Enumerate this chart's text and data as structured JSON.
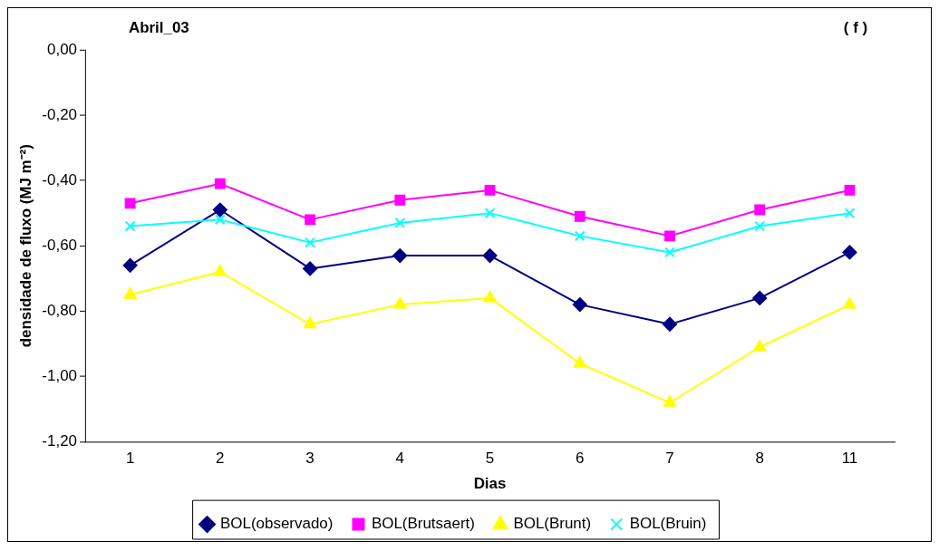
{
  "chart_data": {
    "type": "line",
    "title": "Abril_03",
    "annotations": [
      "( f )"
    ],
    "xlabel": "Dias",
    "ylabel": "densidade de fluxo (MJ m⁻²)",
    "categories": [
      "1",
      "2",
      "3",
      "4",
      "5",
      "6",
      "7",
      "8",
      "11"
    ],
    "ylim": [
      -1.2,
      0
    ],
    "yticks": [
      {
        "value": 0,
        "label": "0,00"
      },
      {
        "value": -0.2,
        "label": "-0,20"
      },
      {
        "value": -0.4,
        "label": "-0,40"
      },
      {
        "value": -0.6,
        "label": "-0,60"
      },
      {
        "value": -0.8,
        "label": "-0,80"
      },
      {
        "value": -1,
        "label": "-1,00"
      },
      {
        "value": -1.2,
        "label": "-1,20"
      }
    ],
    "grid": false,
    "legend": "bottom",
    "line_style": "solid",
    "series": [
      {
        "name": "BOL(observado)",
        "color": "#000080",
        "marker": "diamond",
        "values": [
          -0.66,
          -0.49,
          -0.67,
          -0.63,
          -0.63,
          -0.78,
          -0.84,
          -0.76,
          -0.62
        ]
      },
      {
        "name": "BOL(Brutsaert)",
        "color": "#ff00ff",
        "marker": "square",
        "values": [
          -0.47,
          -0.41,
          -0.52,
          -0.46,
          -0.43,
          -0.51,
          -0.57,
          -0.49,
          -0.43
        ]
      },
      {
        "name": "BOL(Brunt)",
        "color": "#ffff00",
        "marker": "triangle",
        "values": [
          -0.75,
          -0.68,
          -0.84,
          -0.78,
          -0.76,
          -0.96,
          -1.08,
          -0.91,
          -0.78
        ]
      },
      {
        "name": "BOL(Bruin)",
        "color": "#00ffff",
        "marker": "cross",
        "values": [
          -0.54,
          -0.52,
          -0.59,
          -0.53,
          -0.5,
          -0.57,
          -0.62,
          -0.54,
          -0.5
        ]
      }
    ]
  }
}
